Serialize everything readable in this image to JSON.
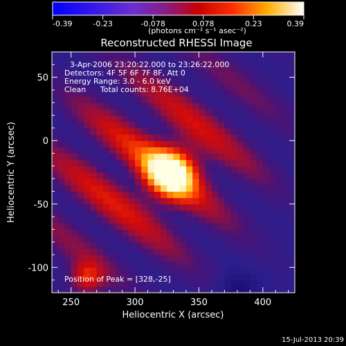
{
  "chart_data": {
    "type": "heatmap",
    "title": "Reconstructed RHESSI Image",
    "xlabel": "Heliocentric X (arcsec)",
    "ylabel": "Heliocentric Y (arcsec)",
    "xlim": [
      235,
      425
    ],
    "ylim": [
      -120,
      70
    ],
    "xticks": [
      250,
      300,
      350,
      400
    ],
    "yticks": [
      50,
      0,
      -50,
      -100
    ],
    "colorbar": {
      "min": -0.39,
      "max": 0.39,
      "ticks": [
        "-0.39",
        "-0.23",
        "-0.078",
        "0.078",
        "0.23",
        "0.39"
      ],
      "unit": "(photons cm⁻² s⁻¹ asec⁻²)"
    },
    "annotations": [
      "3-Apr-2006 23:20:22.000 to 23:26:22.000",
      "Detectors: 4F 5F 6F 7F 8F, Att 0",
      "Energy Range: 3.0 - 6.0 keV",
      "Clean",
      "Total counts: 8.76E+04"
    ],
    "peak_label": "Position of Peak = [328,-25]",
    "peak": [
      328,
      -25
    ],
    "timestamp": "15-Jul-2013 20:39",
    "colors": {
      "background": "#000000",
      "low": "#2a1f8f",
      "high": "#ffffe0"
    }
  }
}
